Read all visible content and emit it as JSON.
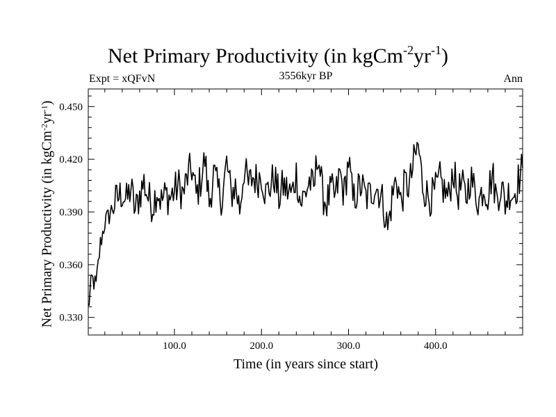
{
  "chart_data": {
    "type": "line",
    "title_main": "Net Primary Productivity (in kgCm",
    "title_sup1": "-2",
    "title_mid": "yr",
    "title_sup2": "-1",
    "title_end": ")",
    "left_label": "Expt = xQFvN",
    "center_label": "3556kyr BP",
    "right_label": "Ann",
    "xlabel": "Time (in years since start)",
    "ylabel_main": "Net Primary Productivity (in kgCm",
    "ylabel_sup1": "-2",
    "ylabel_mid": "yr",
    "ylabel_sup2": "-1",
    "ylabel_end": ")",
    "xlim": [
      1,
      500
    ],
    "ylim": [
      0.32,
      0.46
    ],
    "xticks": [
      100,
      200,
      300,
      400
    ],
    "xtick_labels": [
      "100.0",
      "200.0",
      "300.0",
      "400.0"
    ],
    "yticks": [
      0.33,
      0.36,
      0.39,
      0.42,
      0.45
    ],
    "ytick_labels": [
      "0.330",
      "0.360",
      "0.390",
      "0.420",
      "0.450"
    ],
    "grid": false,
    "series": [
      {
        "x": [
          1,
          5,
          10,
          15,
          20,
          25,
          30,
          35,
          40,
          45,
          50,
          55,
          60,
          65,
          70,
          75,
          80,
          85,
          90,
          95,
          100,
          105,
          110,
          115,
          120,
          125,
          130,
          135,
          140,
          145,
          150,
          155,
          160,
          165,
          170,
          175,
          180,
          185,
          190,
          195,
          200,
          205,
          210,
          215,
          220,
          225,
          230,
          235,
          240,
          245,
          250,
          255,
          260,
          265,
          270,
          275,
          280,
          285,
          290,
          295,
          300,
          305,
          310,
          315,
          320,
          325,
          330,
          335,
          340,
          345,
          350,
          355,
          360,
          365,
          370,
          375,
          380,
          385,
          390,
          395,
          400,
          405,
          410,
          415,
          420,
          425,
          430,
          435,
          440,
          445,
          450,
          455,
          460,
          465,
          470,
          475,
          480,
          485,
          490,
          495,
          500
        ],
        "values": [
          0.335,
          0.352,
          0.348,
          0.372,
          0.384,
          0.388,
          0.394,
          0.398,
          0.401,
          0.396,
          0.404,
          0.39,
          0.4,
          0.407,
          0.398,
          0.394,
          0.403,
          0.396,
          0.4,
          0.398,
          0.402,
          0.405,
          0.4,
          0.41,
          0.415,
          0.399,
          0.408,
          0.42,
          0.395,
          0.412,
          0.402,
          0.398,
          0.418,
          0.4,
          0.405,
          0.392,
          0.415,
          0.405,
          0.41,
          0.408,
          0.412,
          0.4,
          0.405,
          0.41,
          0.398,
          0.405,
          0.402,
          0.4,
          0.412,
          0.395,
          0.4,
          0.408,
          0.402,
          0.425,
          0.4,
          0.395,
          0.402,
          0.398,
          0.412,
          0.4,
          0.42,
          0.396,
          0.402,
          0.405,
          0.398,
          0.4,
          0.405,
          0.402,
          0.395,
          0.38,
          0.398,
          0.41,
          0.395,
          0.406,
          0.405,
          0.418,
          0.428,
          0.406,
          0.4,
          0.398,
          0.402,
          0.408,
          0.402,
          0.398,
          0.415,
          0.4,
          0.405,
          0.398,
          0.41,
          0.402,
          0.396,
          0.405,
          0.4,
          0.412,
          0.398,
          0.405,
          0.395,
          0.402,
          0.4,
          0.408,
          0.415
        ]
      }
    ]
  }
}
